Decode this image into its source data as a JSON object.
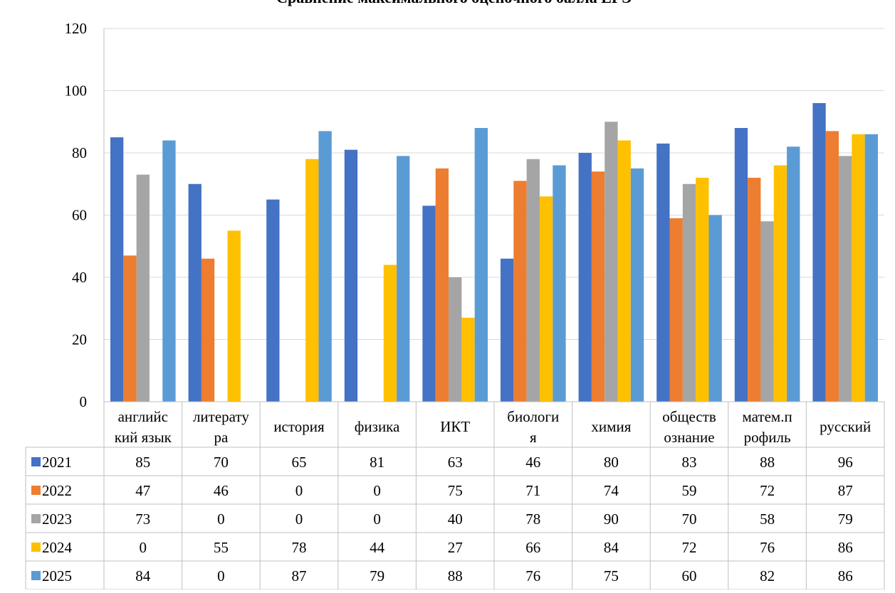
{
  "chart_data": {
    "type": "bar",
    "title": "Сравнение максимального оценочного балла ЕГЭ",
    "categories": [
      [
        "английс",
        "кий язык"
      ],
      [
        "литерату",
        "ра"
      ],
      [
        "история"
      ],
      [
        "физика"
      ],
      [
        "ИКТ"
      ],
      [
        "биологи",
        "я"
      ],
      [
        "химия"
      ],
      [
        "обществ",
        "ознание"
      ],
      [
        "матем.п",
        "рофиль"
      ],
      [
        "русский"
      ]
    ],
    "series": [
      {
        "name": "2021",
        "color": "#4472C4",
        "values": [
          85,
          70,
          65,
          81,
          63,
          46,
          80,
          83,
          88,
          96
        ]
      },
      {
        "name": "2022",
        "color": "#ED7D31",
        "values": [
          47,
          46,
          0,
          0,
          75,
          71,
          74,
          59,
          72,
          87
        ]
      },
      {
        "name": "2023",
        "color": "#A5A5A5",
        "values": [
          73,
          0,
          0,
          0,
          40,
          78,
          90,
          70,
          58,
          79
        ]
      },
      {
        "name": "2024",
        "color": "#FFC000",
        "values": [
          0,
          55,
          78,
          44,
          27,
          66,
          84,
          72,
          76,
          86
        ]
      },
      {
        "name": "2025",
        "color": "#5B9BD5",
        "values": [
          84,
          0,
          87,
          79,
          88,
          76,
          75,
          60,
          82,
          86
        ]
      }
    ],
    "ylim": [
      0,
      120
    ],
    "yticks": [
      0,
      20,
      40,
      60,
      80,
      100,
      120
    ],
    "grid": true,
    "legend": "data-table"
  }
}
